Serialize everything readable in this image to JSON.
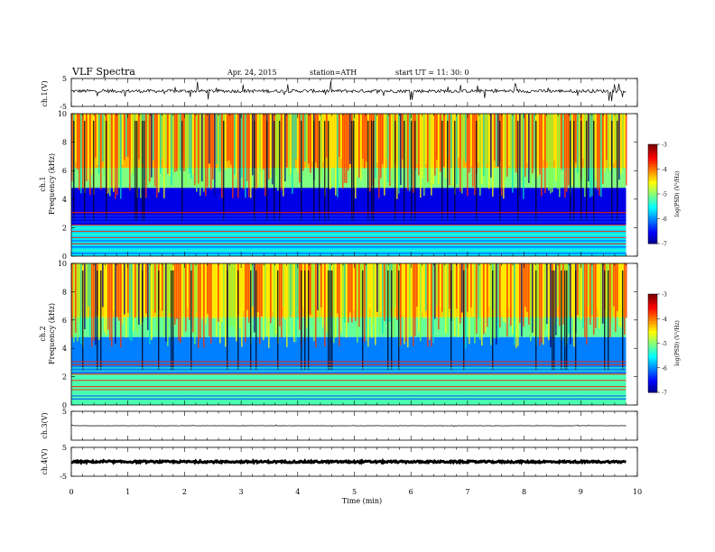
{
  "header": {
    "title": "VLF  Spectra",
    "date": "Apr. 24, 2015",
    "station": "station=ATH",
    "start": "start  UT  =    11: 30: 0"
  },
  "colorbar": {
    "label": "log(PSD) (V²/Hz)",
    "ticks": [
      "-3",
      "-4",
      "-5",
      "-6",
      "-7"
    ],
    "range": [
      -7,
      -3
    ]
  },
  "chart_data": [
    {
      "type": "line",
      "panel": "ch1-waveform",
      "ylabel": "ch.1(V)",
      "ylim": [
        -5,
        5
      ],
      "yticks": [
        "5",
        "-5"
      ],
      "x_range": [
        0,
        9.8
      ],
      "baseline": 0.5,
      "noise_amplitude": 0.6,
      "spike_amplitude": 3.5
    },
    {
      "type": "heatmap",
      "panel": "ch1-spectrogram",
      "ylabel": "ch.1",
      "ylabel2": "Frequency  (kHz)",
      "ylim": [
        0,
        10
      ],
      "yticks": [
        "10",
        "8",
        "6",
        "4",
        "2",
        "0"
      ],
      "x_range": [
        0,
        9.8
      ],
      "colormap": "jet",
      "bands": [
        {
          "f_from": 0,
          "f_to": 2.2,
          "log_psd": -5.6
        },
        {
          "f_from": 2.2,
          "f_to": 4.8,
          "log_psd": -6.6
        },
        {
          "f_from": 4.8,
          "f_to": 6.2,
          "log_psd": -5.0
        },
        {
          "f_from": 6.2,
          "f_to": 10,
          "log_psd": -4.2
        }
      ]
    },
    {
      "type": "heatmap",
      "panel": "ch2-spectrogram",
      "ylabel": "ch.2",
      "ylabel2": "Frequency  (kHz)",
      "ylim": [
        0,
        10
      ],
      "yticks": [
        "10",
        "8",
        "6",
        "4",
        "2",
        "0"
      ],
      "x_range": [
        0,
        9.8
      ],
      "colormap": "jet",
      "bands": [
        {
          "f_from": 0,
          "f_to": 2.2,
          "log_psd": -5.2
        },
        {
          "f_from": 2.2,
          "f_to": 4.8,
          "log_psd": -6.0
        },
        {
          "f_from": 4.8,
          "f_to": 6.2,
          "log_psd": -5.1
        },
        {
          "f_from": 6.2,
          "f_to": 10,
          "log_psd": -4.3
        }
      ]
    },
    {
      "type": "line",
      "panel": "ch3-waveform",
      "ylabel": "ch.3(V)",
      "ylim": [
        -5,
        5
      ],
      "yticks": [
        "5"
      ],
      "x_range": [
        0,
        9.8
      ],
      "baseline": 0,
      "noise_amplitude": 0.05,
      "spike_amplitude": 0.3
    },
    {
      "type": "line",
      "panel": "ch4-waveform",
      "ylabel": "ch.4(V)",
      "ylim": [
        -5,
        5
      ],
      "yticks": [
        "5",
        "-5"
      ],
      "x_range": [
        0,
        9.8
      ],
      "baseline": 0,
      "noise_amplitude": 0.3,
      "spike_amplitude": 0.4
    }
  ],
  "xaxis": {
    "label": "Time  (min)",
    "xlim": [
      0,
      10
    ],
    "ticks": [
      "0",
      "1",
      "2",
      "3",
      "4",
      "5",
      "6",
      "7",
      "8",
      "9",
      "10"
    ]
  }
}
